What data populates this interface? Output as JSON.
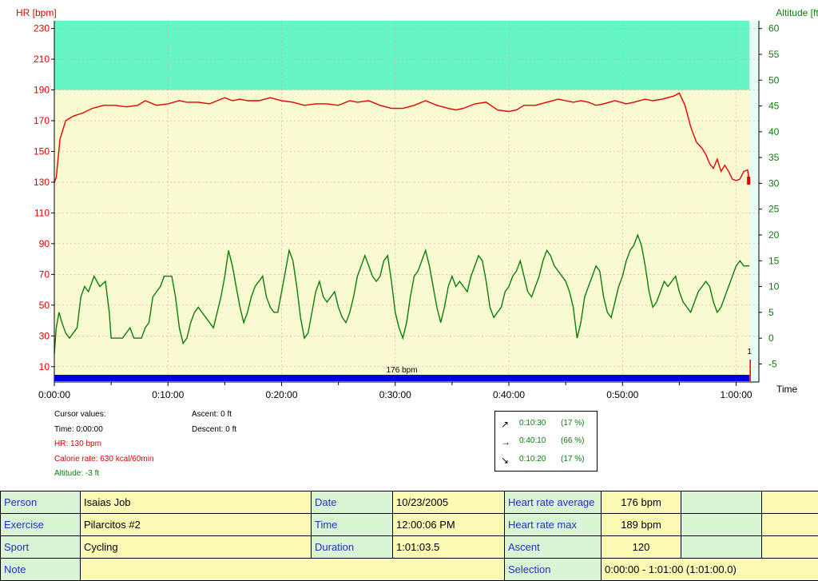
{
  "chart_data": {
    "type": "line",
    "left_axis": {
      "label": "HR [bpm]",
      "min": 0,
      "max": 235,
      "ticks": [
        10,
        30,
        50,
        70,
        90,
        110,
        130,
        150,
        170,
        190,
        210,
        230
      ],
      "color": "#e00000"
    },
    "right_axis": {
      "label": "Altitude [ft]",
      "min": -8.5,
      "max": 61.5,
      "ticks": [
        -5,
        0,
        5,
        10,
        15,
        20,
        25,
        30,
        35,
        40,
        45,
        50,
        55,
        60
      ],
      "color": "#0b7d0b"
    },
    "x_axis": {
      "label": "Time",
      "min_sec": 0,
      "max_sec": 3720,
      "tick_labels": [
        "0:00:00",
        "0:10:00",
        "0:20:00",
        "0:30:00",
        "0:40:00",
        "0:50:00",
        "1:00:00"
      ],
      "tick_values_sec": [
        0,
        600,
        1200,
        1800,
        2400,
        3000,
        3600
      ]
    },
    "grid": true,
    "zone_band": {
      "upper_hr": 190,
      "upper_color": "#66f5c6",
      "lower_color": "#fafad2"
    },
    "series": [
      {
        "name": "HR",
        "color": "#e00000",
        "axis": "left",
        "points": [
          [
            0,
            130
          ],
          [
            10,
            133
          ],
          [
            30,
            158
          ],
          [
            60,
            170
          ],
          [
            100,
            173
          ],
          [
            150,
            175
          ],
          [
            200,
            178
          ],
          [
            260,
            180
          ],
          [
            320,
            180
          ],
          [
            380,
            179
          ],
          [
            440,
            180
          ],
          [
            480,
            183
          ],
          [
            540,
            180
          ],
          [
            600,
            181
          ],
          [
            660,
            183
          ],
          [
            700,
            182
          ],
          [
            760,
            182
          ],
          [
            820,
            181
          ],
          [
            860,
            183
          ],
          [
            900,
            185
          ],
          [
            940,
            183
          ],
          [
            980,
            184
          ],
          [
            1020,
            183
          ],
          [
            1080,
            183
          ],
          [
            1140,
            185
          ],
          [
            1200,
            183
          ],
          [
            1260,
            182
          ],
          [
            1320,
            180
          ],
          [
            1380,
            181
          ],
          [
            1440,
            181
          ],
          [
            1500,
            180
          ],
          [
            1560,
            183
          ],
          [
            1600,
            182
          ],
          [
            1660,
            183
          ],
          [
            1720,
            180
          ],
          [
            1780,
            178
          ],
          [
            1840,
            178
          ],
          [
            1900,
            180
          ],
          [
            1960,
            183
          ],
          [
            2020,
            180
          ],
          [
            2080,
            178
          ],
          [
            2120,
            177
          ],
          [
            2160,
            178
          ],
          [
            2220,
            181
          ],
          [
            2280,
            182
          ],
          [
            2340,
            177
          ],
          [
            2400,
            176
          ],
          [
            2440,
            177
          ],
          [
            2480,
            180
          ],
          [
            2540,
            180
          ],
          [
            2600,
            182
          ],
          [
            2660,
            184
          ],
          [
            2700,
            183
          ],
          [
            2740,
            182
          ],
          [
            2780,
            183
          ],
          [
            2820,
            182
          ],
          [
            2860,
            180
          ],
          [
            2900,
            181
          ],
          [
            2960,
            183
          ],
          [
            3020,
            181
          ],
          [
            3060,
            182
          ],
          [
            3120,
            184
          ],
          [
            3160,
            183
          ],
          [
            3210,
            184
          ],
          [
            3270,
            186
          ],
          [
            3300,
            188
          ],
          [
            3330,
            180
          ],
          [
            3360,
            166
          ],
          [
            3390,
            156
          ],
          [
            3420,
            152
          ],
          [
            3440,
            148
          ],
          [
            3460,
            142
          ],
          [
            3480,
            139
          ],
          [
            3500,
            145
          ],
          [
            3520,
            137
          ],
          [
            3540,
            141
          ],
          [
            3560,
            137
          ],
          [
            3580,
            132
          ],
          [
            3600,
            131
          ],
          [
            3620,
            132
          ],
          [
            3640,
            137
          ],
          [
            3660,
            138
          ],
          [
            3670,
            131
          ]
        ]
      },
      {
        "name": "Altitude",
        "color": "#0b7d0b",
        "axis": "right",
        "points": [
          [
            0,
            -3
          ],
          [
            10,
            2
          ],
          [
            25,
            5
          ],
          [
            40,
            3
          ],
          [
            60,
            1
          ],
          [
            80,
            0
          ],
          [
            100,
            1
          ],
          [
            120,
            2
          ],
          [
            140,
            8
          ],
          [
            160,
            10
          ],
          [
            180,
            9
          ],
          [
            210,
            12
          ],
          [
            240,
            10
          ],
          [
            270,
            11
          ],
          [
            290,
            5
          ],
          [
            300,
            0
          ],
          [
            340,
            0
          ],
          [
            360,
            0
          ],
          [
            400,
            2
          ],
          [
            420,
            0
          ],
          [
            460,
            0
          ],
          [
            480,
            2
          ],
          [
            500,
            3
          ],
          [
            520,
            8
          ],
          [
            540,
            9
          ],
          [
            560,
            10
          ],
          [
            580,
            12
          ],
          [
            600,
            12
          ],
          [
            620,
            12
          ],
          [
            640,
            8
          ],
          [
            660,
            2
          ],
          [
            680,
            -1
          ],
          [
            700,
            0
          ],
          [
            720,
            3
          ],
          [
            740,
            5
          ],
          [
            760,
            6
          ],
          [
            780,
            5
          ],
          [
            820,
            3
          ],
          [
            840,
            2
          ],
          [
            860,
            5
          ],
          [
            880,
            8
          ],
          [
            900,
            12
          ],
          [
            920,
            17
          ],
          [
            940,
            14
          ],
          [
            960,
            10
          ],
          [
            980,
            6
          ],
          [
            1000,
            3
          ],
          [
            1020,
            5
          ],
          [
            1040,
            8
          ],
          [
            1060,
            10
          ],
          [
            1080,
            11
          ],
          [
            1100,
            12
          ],
          [
            1120,
            8
          ],
          [
            1140,
            6
          ],
          [
            1160,
            5
          ],
          [
            1180,
            5
          ],
          [
            1200,
            9
          ],
          [
            1220,
            13
          ],
          [
            1240,
            17
          ],
          [
            1260,
            15
          ],
          [
            1280,
            10
          ],
          [
            1300,
            4
          ],
          [
            1320,
            0
          ],
          [
            1340,
            1
          ],
          [
            1360,
            5
          ],
          [
            1380,
            9
          ],
          [
            1400,
            11
          ],
          [
            1420,
            8
          ],
          [
            1440,
            7
          ],
          [
            1460,
            8
          ],
          [
            1480,
            9
          ],
          [
            1500,
            6
          ],
          [
            1520,
            4
          ],
          [
            1540,
            3
          ],
          [
            1560,
            5
          ],
          [
            1580,
            8
          ],
          [
            1600,
            12
          ],
          [
            1620,
            14
          ],
          [
            1640,
            16
          ],
          [
            1660,
            14
          ],
          [
            1680,
            12
          ],
          [
            1700,
            11
          ],
          [
            1720,
            12
          ],
          [
            1740,
            15
          ],
          [
            1760,
            16
          ],
          [
            1780,
            11
          ],
          [
            1800,
            5
          ],
          [
            1820,
            2
          ],
          [
            1840,
            0
          ],
          [
            1860,
            3
          ],
          [
            1880,
            8
          ],
          [
            1900,
            12
          ],
          [
            1920,
            13
          ],
          [
            1940,
            15
          ],
          [
            1960,
            17
          ],
          [
            1980,
            14
          ],
          [
            2000,
            10
          ],
          [
            2020,
            6
          ],
          [
            2040,
            3
          ],
          [
            2060,
            6
          ],
          [
            2080,
            10
          ],
          [
            2100,
            12
          ],
          [
            2120,
            10
          ],
          [
            2140,
            11
          ],
          [
            2160,
            10
          ],
          [
            2180,
            9
          ],
          [
            2200,
            12
          ],
          [
            2220,
            14
          ],
          [
            2240,
            16
          ],
          [
            2260,
            15
          ],
          [
            2280,
            11
          ],
          [
            2300,
            6
          ],
          [
            2320,
            4
          ],
          [
            2340,
            5
          ],
          [
            2360,
            6
          ],
          [
            2380,
            9
          ],
          [
            2400,
            10
          ],
          [
            2420,
            12
          ],
          [
            2440,
            13
          ],
          [
            2460,
            15
          ],
          [
            2480,
            12
          ],
          [
            2500,
            9
          ],
          [
            2520,
            8
          ],
          [
            2540,
            10
          ],
          [
            2560,
            12
          ],
          [
            2580,
            15
          ],
          [
            2600,
            17
          ],
          [
            2620,
            16
          ],
          [
            2640,
            14
          ],
          [
            2660,
            13
          ],
          [
            2680,
            12
          ],
          [
            2700,
            11
          ],
          [
            2720,
            9
          ],
          [
            2740,
            6
          ],
          [
            2760,
            0
          ],
          [
            2780,
            3
          ],
          [
            2800,
            8
          ],
          [
            2820,
            10
          ],
          [
            2840,
            12
          ],
          [
            2860,
            14
          ],
          [
            2880,
            13
          ],
          [
            2900,
            8
          ],
          [
            2920,
            5
          ],
          [
            2940,
            4
          ],
          [
            2960,
            7
          ],
          [
            2980,
            10
          ],
          [
            3000,
            12
          ],
          [
            3020,
            15
          ],
          [
            3040,
            17
          ],
          [
            3060,
            18
          ],
          [
            3080,
            20
          ],
          [
            3100,
            18
          ],
          [
            3120,
            14
          ],
          [
            3140,
            9
          ],
          [
            3160,
            6
          ],
          [
            3180,
            7
          ],
          [
            3200,
            9
          ],
          [
            3220,
            11
          ],
          [
            3240,
            10
          ],
          [
            3260,
            11
          ],
          [
            3280,
            12
          ],
          [
            3300,
            9
          ],
          [
            3320,
            7
          ],
          [
            3340,
            6
          ],
          [
            3360,
            5
          ],
          [
            3380,
            7
          ],
          [
            3400,
            9
          ],
          [
            3420,
            10
          ],
          [
            3440,
            11
          ],
          [
            3460,
            10
          ],
          [
            3480,
            7
          ],
          [
            3500,
            5
          ],
          [
            3520,
            6
          ],
          [
            3540,
            8
          ],
          [
            3560,
            10
          ],
          [
            3580,
            12
          ],
          [
            3600,
            14
          ],
          [
            3620,
            15
          ],
          [
            3640,
            14
          ],
          [
            3670,
            14
          ]
        ]
      }
    ],
    "annotations": {
      "band_label": "176 bpm",
      "marker_label": "1"
    }
  },
  "cursor_values": {
    "title": "Cursor values:",
    "time": "Time: 0:00:00",
    "hr": "HR: 130 bpm",
    "calorie": "Calorie rate: 630 kcal/60min",
    "altitude": "Altitude: -3 ft",
    "ascent": "Ascent: 0 ft",
    "descent": "Descent: 0 ft"
  },
  "zones": [
    {
      "arrow": "↗",
      "time": "0:10:30",
      "pct": "(17 %)"
    },
    {
      "arrow": "→",
      "time": "0:40:10",
      "pct": "(66 %)"
    },
    {
      "arrow": "↘",
      "time": "0:10:20",
      "pct": "(17 %)"
    }
  ],
  "summary": {
    "person_label": "Person",
    "person": "Isaias Job",
    "date_label": "Date",
    "date": "10/23/2005",
    "hr_avg_label": "Heart rate average",
    "hr_avg": "176 bpm",
    "exercise_label": "Exercise",
    "exercise": "Pilarcitos #2",
    "time_label": "Time",
    "time": "12:00:06 PM",
    "hr_max_label": "Heart rate max",
    "hr_max": "189 bpm",
    "sport_label": "Sport",
    "sport": "Cycling",
    "duration_label": "Duration",
    "duration": "1:01:03.5",
    "ascent_label": "Ascent",
    "ascent": "120",
    "note_label": "Note",
    "note": "",
    "selection_label": "Selection",
    "selection": "0:00:00 - 1:01:00 (1:01:00.0)"
  }
}
